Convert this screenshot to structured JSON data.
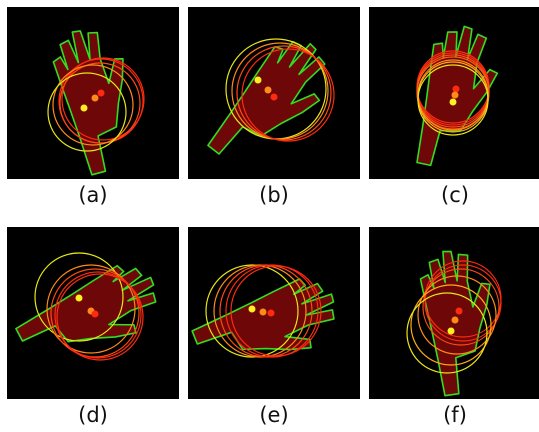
{
  "figure": {
    "panels": [
      {
        "label": "(a)"
      },
      {
        "label": "(b)"
      },
      {
        "label": "(c)"
      },
      {
        "label": "(d)"
      },
      {
        "label": "(e)"
      },
      {
        "label": "(f)"
      }
    ],
    "colors": {
      "background": "#000000",
      "hand_fill": "#6e0808",
      "hand_outline": "#33dd22",
      "circle_red": "#ff2a10",
      "circle_orange": "#ff8a1a",
      "circle_yellow": "#e6e61a",
      "point_red": "#ff2a10",
      "point_orange": "#ff8a1a",
      "point_yellow": "#ffee22"
    }
  }
}
